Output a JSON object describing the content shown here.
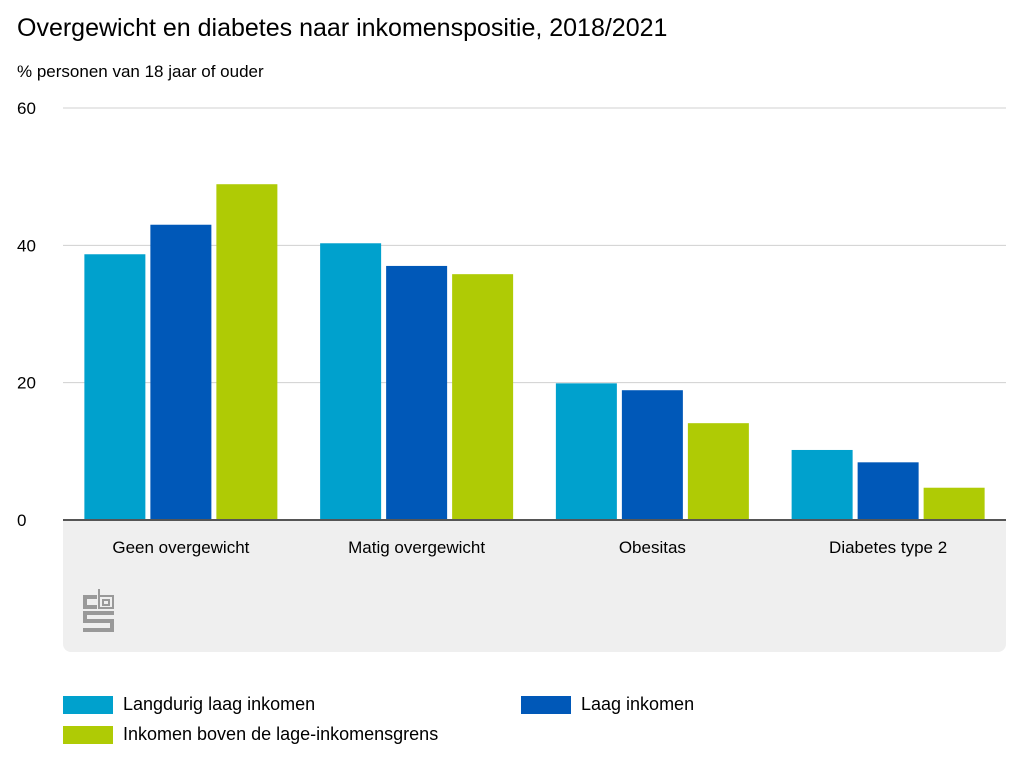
{
  "chart_data": {
    "type": "bar",
    "title": "Overgewicht en diabetes naar inkomenspositie, 2018/2021",
    "subtitle": "% personen van 18 jaar of ouder",
    "categories": [
      "Geen overgewicht",
      "Matig overgewicht",
      "Obesitas",
      "Diabetes type 2"
    ],
    "series": [
      {
        "name": "Langdurig laag inkomen",
        "color": "#00a1cd",
        "values": [
          38.7,
          40.3,
          19.9,
          10.2
        ]
      },
      {
        "name": "Laag inkomen",
        "color": "#0058b8",
        "values": [
          43.0,
          37.0,
          18.9,
          8.4
        ]
      },
      {
        "name": "Inkomen boven de lage-inkomensgrens",
        "color": "#afcb05",
        "values": [
          48.9,
          35.8,
          14.1,
          4.7
        ]
      }
    ],
    "ylim": [
      0,
      60
    ],
    "yticks": [
      0,
      20,
      40,
      60
    ],
    "grid": true,
    "legend_position": "bottom"
  },
  "logo": "cbs"
}
